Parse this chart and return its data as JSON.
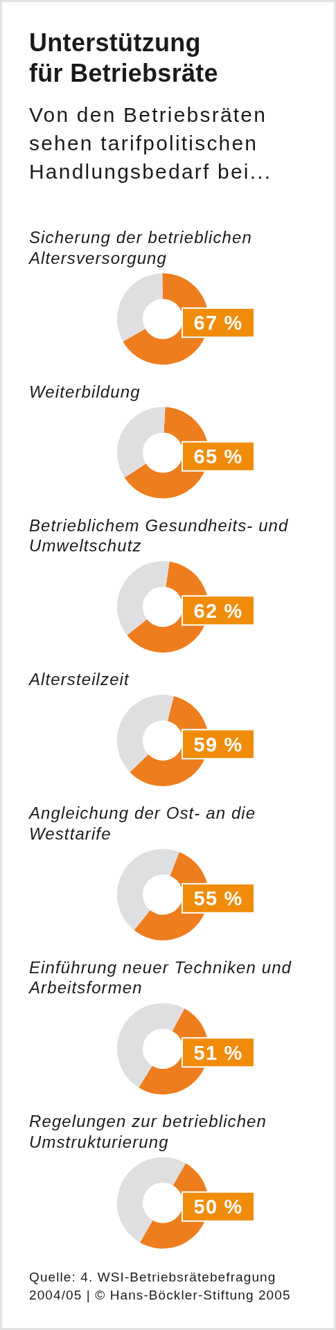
{
  "chart_data": [
    {
      "type": "other",
      "title": "Unterstützung für Betriebsräte",
      "subtitle": "Von den Betriebsräten sehen tarifpolitischen Handlungsbedarf bei..."
    },
    {
      "type": "donut",
      "title": "Sicherung der betrieblichen Altersversorgung",
      "categories": [
        null,
        null
      ],
      "values": [
        67,
        33
      ],
      "colors": [
        "#ee7d1e",
        "#dfdfe1"
      ],
      "value_labels": [
        "67 %",
        null
      ]
    },
    {
      "type": "donut",
      "title": "Weiterbildung",
      "categories": [
        null,
        null
      ],
      "values": [
        65,
        35
      ],
      "colors": [
        "#ee7d1e",
        "#dfdfe1"
      ],
      "value_labels": [
        "65 %",
        null
      ]
    },
    {
      "type": "donut",
      "title": "Betrieblichem Gesundheits- und Umweltschutz",
      "categories": [
        null,
        null
      ],
      "values": [
        62,
        38
      ],
      "colors": [
        "#ee7d1e",
        "#dfdfe1"
      ],
      "value_labels": [
        "62 %",
        null
      ]
    },
    {
      "type": "donut",
      "title": "Altersteilzeit",
      "categories": [
        null,
        null
      ],
      "values": [
        59,
        41
      ],
      "colors": [
        "#ee7d1e",
        "#dfdfe1"
      ],
      "value_labels": [
        "59 %",
        null
      ]
    },
    {
      "type": "donut",
      "title": "Angleichung der Ost- an die Westtarife",
      "categories": [
        null,
        null
      ],
      "values": [
        55,
        45
      ],
      "colors": [
        "#ee7d1e",
        "#dfdfe1"
      ],
      "value_labels": [
        "55 %",
        null
      ]
    },
    {
      "type": "donut",
      "title": "Einführung neuer Techniken und Arbeitsformen",
      "categories": [
        null,
        null
      ],
      "values": [
        51,
        49
      ],
      "colors": [
        "#ee7d1e",
        "#dfdfe1"
      ],
      "value_labels": [
        "51 %",
        null
      ]
    },
    {
      "type": "donut",
      "title": "Regelungen zur betrieblichen Umstrukturierung",
      "categories": [
        null,
        null
      ],
      "values": [
        50,
        50
      ],
      "colors": [
        "#ee7d1e",
        "#dfdfe1"
      ],
      "value_labels": [
        "50 %",
        null
      ]
    },
    {
      "type": "other",
      "annotations": [
        "Quelle: 4. WSI-Betriebsrätebefragung 2004/05 | © Hans-Böckler-Stiftung 2005"
      ]
    }
  ]
}
